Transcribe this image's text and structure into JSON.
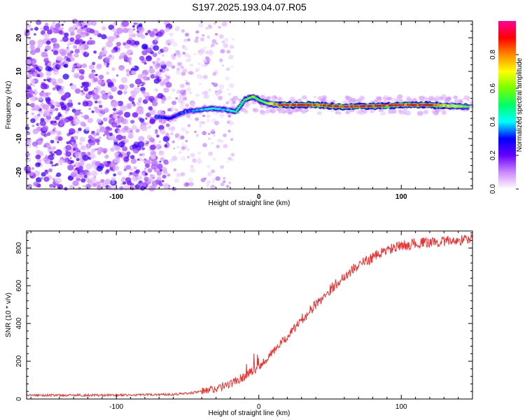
{
  "title": "S197.2025.193.04.07.R05",
  "chart_data": [
    {
      "type": "heatmap",
      "xlabel": "Height of straight line (km)",
      "ylabel": "Frequency (Hz)",
      "xlim": [
        -163,
        150
      ],
      "ylim": [
        -25,
        25
      ],
      "x_ticks": [
        -100,
        0,
        100
      ],
      "y_ticks": [
        -20,
        -10,
        0,
        10,
        20
      ],
      "colorbar": {
        "label": "Normalized spectral amplitude",
        "range": [
          0,
          1
        ],
        "ticks": [
          "0.0",
          "0.2",
          "0.4",
          "0.6",
          "0.8"
        ],
        "colors": [
          "#ffffff",
          "#cc88ff",
          "#6600ff",
          "#0000ff",
          "#00ffff",
          "#00ff66",
          "#77ff00",
          "#ffff00",
          "#ff8800",
          "#ff0000",
          "#ff0099"
        ]
      },
      "signal_track": {
        "x": [
          -72,
          -62,
          -52,
          -42,
          -32,
          -22,
          -16,
          -10,
          -4,
          0,
          6,
          15,
          25,
          40,
          60,
          80,
          100,
          120,
          147
        ],
        "freq": [
          -3.5,
          -4.0,
          -2.0,
          -1.5,
          -1.0,
          -1.5,
          -2.0,
          1.5,
          2.5,
          1.5,
          0.5,
          0.0,
          0.0,
          0.0,
          -0.5,
          -0.3,
          0.0,
          0.0,
          -0.5
        ],
        "amplitude": [
          0.35,
          0.3,
          0.35,
          0.4,
          0.45,
          0.4,
          0.5,
          0.5,
          0.6,
          0.55,
          0.6,
          0.95,
          0.95,
          0.9,
          0.95,
          0.9,
          0.92,
          0.95,
          0.6
        ]
      }
    },
    {
      "type": "line",
      "xlabel": "Height of straight line (km)",
      "ylabel": "SNR (10 * v/v)",
      "xlim": [
        -163,
        150
      ],
      "ylim": [
        0,
        890
      ],
      "x_ticks": [
        -100,
        0,
        100
      ],
      "y_ticks": [
        0,
        200,
        400,
        600,
        800
      ],
      "color": "#ee3030",
      "series": [
        {
          "x": [
            -163,
            -140,
            -120,
            -100,
            -80,
            -60,
            -50,
            -40,
            -30,
            -20,
            -10,
            0,
            10,
            20,
            30,
            40,
            50,
            60,
            70,
            80,
            90,
            100,
            110,
            120,
            130,
            140,
            150
          ],
          "values": [
            20,
            20,
            20,
            20,
            22,
            25,
            30,
            40,
            55,
            80,
            120,
            170,
            250,
            330,
            420,
            500,
            580,
            650,
            710,
            750,
            790,
            810,
            825,
            830,
            835,
            840,
            850
          ]
        }
      ]
    }
  ]
}
